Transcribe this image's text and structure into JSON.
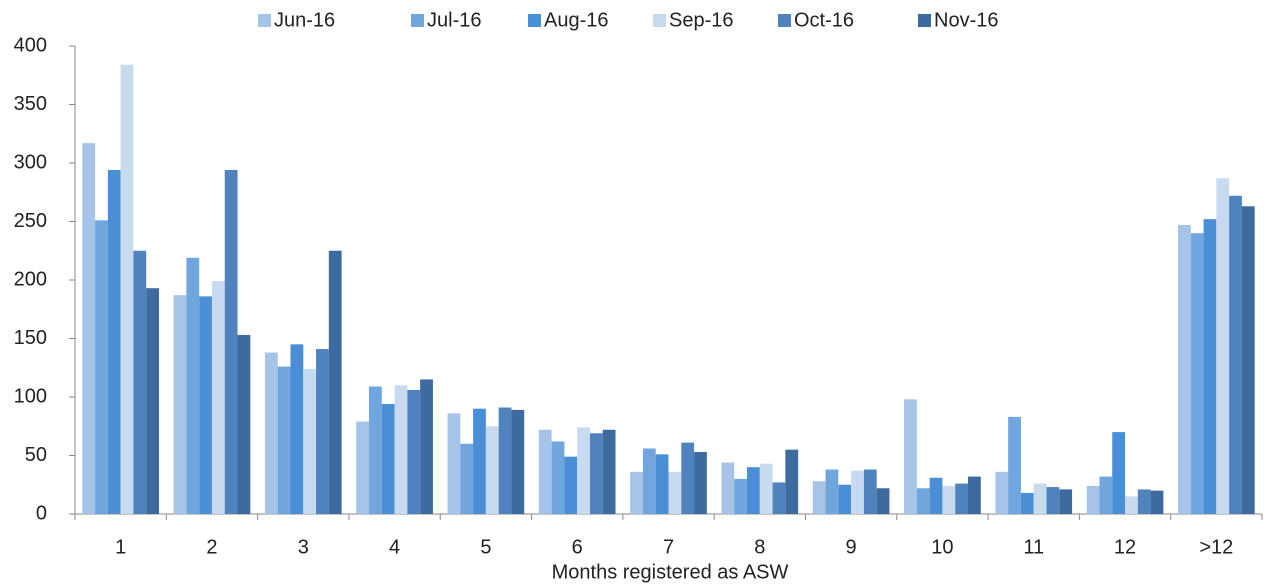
{
  "chart_data": {
    "type": "bar",
    "x_label": "Months registered as ASW",
    "categories": [
      "1",
      "2",
      "3",
      "4",
      "5",
      "6",
      "7",
      "8",
      "9",
      "10",
      "11",
      "12",
      ">12"
    ],
    "series": [
      {
        "name": "Jun-16",
        "color": "#a6c4e8",
        "values": [
          317,
          187,
          138,
          79,
          86,
          72,
          36,
          44,
          28,
          98,
          36,
          24,
          247
        ]
      },
      {
        "name": "Jul-16",
        "color": "#71a5de",
        "values": [
          251,
          219,
          126,
          109,
          60,
          62,
          56,
          30,
          38,
          22,
          83,
          32,
          240
        ]
      },
      {
        "name": "Aug-16",
        "color": "#4a8fd6",
        "values": [
          294,
          186,
          145,
          94,
          90,
          49,
          51,
          40,
          25,
          31,
          18,
          70,
          252
        ]
      },
      {
        "name": "Sep-16",
        "color": "#c8daf0",
        "values": [
          384,
          199,
          124,
          110,
          75,
          74,
          36,
          43,
          37,
          24,
          26,
          15,
          287
        ]
      },
      {
        "name": "Oct-16",
        "color": "#5082bd",
        "values": [
          225,
          294,
          141,
          106,
          91,
          69,
          61,
          27,
          38,
          26,
          23,
          21,
          272
        ]
      },
      {
        "name": "Nov-16",
        "color": "#3e6b9f",
        "values": [
          193,
          153,
          225,
          115,
          89,
          72,
          53,
          55,
          22,
          32,
          21,
          20,
          263
        ]
      }
    ],
    "ylim": [
      0,
      400
    ],
    "yticks": [
      0,
      50,
      100,
      150,
      200,
      250,
      300,
      350,
      400
    ],
    "legend": "top"
  }
}
